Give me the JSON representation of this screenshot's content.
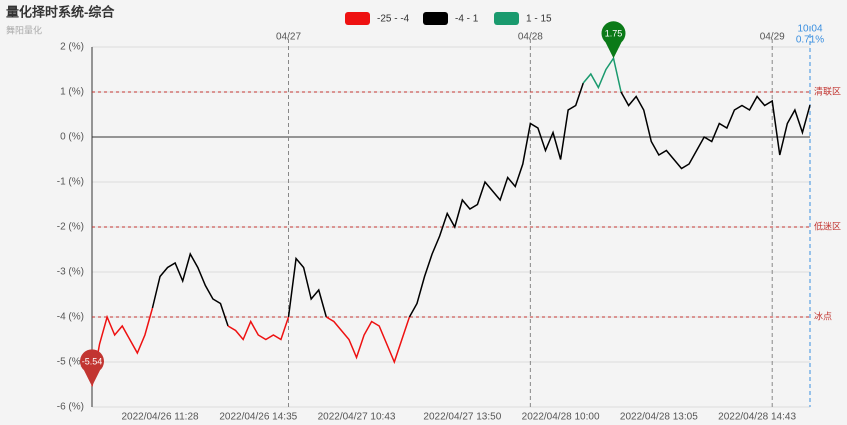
{
  "chart_data": {
    "type": "line",
    "title": "量化择时系统-综合",
    "subtitle": "舞阳量化",
    "categories": [
      null,
      null,
      null,
      null,
      null,
      null,
      null,
      null,
      null,
      "2022/04/26 11:28",
      null,
      null,
      null,
      null,
      null,
      null,
      null,
      null,
      null,
      null,
      null,
      null,
      "2022/04/26 14:35",
      null,
      null,
      null,
      null,
      null,
      null,
      null,
      null,
      null,
      null,
      null,
      null,
      "2022/04/27 10:43",
      null,
      null,
      null,
      null,
      null,
      null,
      null,
      null,
      null,
      null,
      null,
      null,
      null,
      "2022/04/27 13:50",
      null,
      null,
      null,
      null,
      null,
      null,
      null,
      null,
      null,
      null,
      null,
      null,
      "2022/04/28 10:00",
      null,
      null,
      null,
      null,
      null,
      null,
      null,
      null,
      null,
      null,
      null,
      null,
      "2022/04/28 13:05",
      null,
      null,
      null,
      null,
      null,
      null,
      null,
      null,
      null,
      null,
      null,
      null,
      "2022/04/28 14:43",
      null,
      null,
      null,
      null,
      null,
      null,
      null
    ],
    "x2_categories": [
      null,
      null,
      null,
      null,
      null,
      null,
      null,
      null,
      null,
      null,
      null,
      null,
      null,
      null,
      null,
      null,
      null,
      null,
      null,
      null,
      null,
      null,
      null,
      null,
      null,
      null,
      "04/27",
      null,
      null,
      null,
      null,
      null,
      null,
      null,
      null,
      null,
      null,
      null,
      null,
      null,
      null,
      null,
      null,
      null,
      null,
      null,
      null,
      null,
      null,
      null,
      null,
      null,
      null,
      null,
      null,
      null,
      null,
      null,
      "04/28",
      null,
      null,
      null,
      null,
      null,
      null,
      null,
      null,
      null,
      null,
      null,
      null,
      null,
      null,
      null,
      null,
      null,
      null,
      null,
      null,
      null,
      null,
      null,
      null,
      null,
      null,
      null,
      null,
      null,
      null,
      null,
      "04/29",
      null,
      null,
      null,
      null,
      null
    ],
    "series": [
      {
        "values": [
          -5.54,
          -4.6,
          -4.0,
          -4.4,
          -4.2,
          -4.5,
          -4.8,
          -4.4,
          -3.8,
          -3.1,
          -2.9,
          -2.8,
          -3.2,
          -2.6,
          -2.9,
          -3.3,
          -3.6,
          -3.7,
          -4.2,
          -4.3,
          -4.5,
          -4.1,
          -4.4,
          -4.5,
          -4.4,
          -4.5,
          -4.0,
          -2.7,
          -2.9,
          -3.6,
          -3.4,
          -4.0,
          -4.1,
          -4.3,
          -4.5,
          -4.9,
          -4.4,
          -4.1,
          -4.2,
          -4.6,
          -5.0,
          -4.5,
          -4.0,
          -3.7,
          -3.1,
          -2.6,
          -2.2,
          -1.7,
          -2.0,
          -1.4,
          -1.6,
          -1.5,
          -1.0,
          -1.2,
          -1.4,
          -0.9,
          -1.1,
          -0.6,
          0.3,
          0.2,
          -0.3,
          0.1,
          -0.5,
          0.6,
          0.7,
          1.2,
          1.4,
          1.1,
          1.5,
          1.75,
          1.0,
          0.7,
          0.9,
          0.6,
          -0.1,
          -0.4,
          -0.3,
          -0.5,
          -0.7,
          -0.6,
          -0.3,
          0.0,
          -0.1,
          0.3,
          0.2,
          0.6,
          0.7,
          0.6,
          0.9,
          0.7,
          0.8,
          -0.4,
          0.3,
          0.6,
          0.1,
          0.71
        ]
      }
    ],
    "pieces": [
      {
        "min": -25,
        "max": -4,
        "label": "-25 - -4",
        "color": "#ee1111"
      },
      {
        "min": -4,
        "max": 1,
        "label": "-4 - 1",
        "color": "#000000"
      },
      {
        "min": 1,
        "max": 15,
        "label": "1 - 15",
        "color": "#1a9a6e"
      }
    ],
    "mark_lines": [
      {
        "value": 1,
        "label": "清联区"
      },
      {
        "value": -2,
        "label": "低迷区"
      },
      {
        "value": -4,
        "label": "冰点"
      }
    ],
    "end_time_label": "10:04",
    "end_value_label": "0.71%",
    "ylim": [
      -6,
      2
    ],
    "yticks": [
      {
        "value": 2,
        "label": "2 (%)"
      },
      {
        "value": 1,
        "label": "1 (%)"
      },
      {
        "value": 0,
        "label": "0 (%)"
      },
      {
        "value": -1,
        "label": "-1 (%)"
      },
      {
        "value": -2,
        "label": "-2 (%)"
      },
      {
        "value": -3,
        "label": "-3 (%)"
      },
      {
        "value": -4,
        "label": "-4 (%)"
      },
      {
        "value": -5,
        "label": "-5 (%)"
      },
      {
        "value": -6,
        "label": "-6 (%)"
      }
    ],
    "grid": true
  }
}
